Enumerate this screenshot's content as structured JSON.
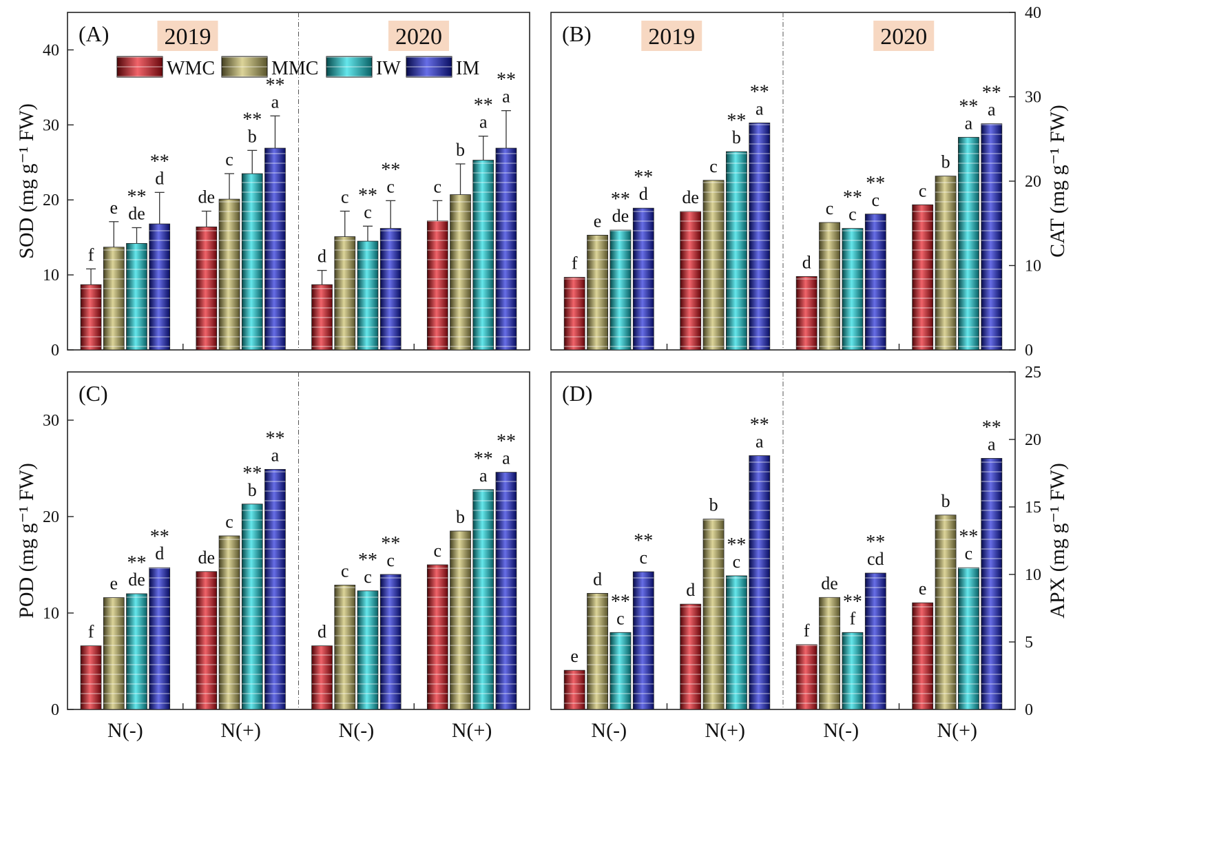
{
  "legend": [
    {
      "key": "WMC",
      "label": "WMC",
      "color": "#e8101a"
    },
    {
      "key": "MMC",
      "label": "MMC",
      "color": "#c9bd62"
    },
    {
      "key": "IW",
      "label": "IW",
      "color": "#12d8e0"
    },
    {
      "key": "IM",
      "label": "IM",
      "color": "#1520d8"
    }
  ],
  "years": [
    "2019",
    "2020"
  ],
  "x_groups": [
    "N(-)",
    "N(+)",
    "N(-)",
    "N(+)"
  ],
  "chart_data": [
    {
      "type": "bar",
      "panel": "(A)",
      "ylabel": "SOD (mg g⁻¹ FW)",
      "axis_side": "left",
      "ylim": [
        0,
        45
      ],
      "yticks": [
        0,
        10,
        20,
        30,
        40
      ],
      "categories": [
        "2019 N(-)",
        "2019 N(+)",
        "2020 N(-)",
        "2020 N(+)"
      ],
      "series": [
        {
          "name": "WMC",
          "values": [
            8.7,
            16.4,
            8.7,
            17.2
          ],
          "errors": [
            2.1,
            2.1,
            1.9,
            2.7
          ],
          "labels": [
            "f",
            "de",
            "d",
            "c"
          ],
          "stars": [
            false,
            false,
            false,
            false
          ]
        },
        {
          "name": "MMC",
          "values": [
            13.7,
            20.1,
            15.1,
            20.7
          ],
          "errors": [
            3.4,
            3.4,
            3.4,
            4.1
          ],
          "labels": [
            "e",
            "c",
            "c",
            "b"
          ],
          "stars": [
            false,
            false,
            false,
            false
          ]
        },
        {
          "name": "IW",
          "values": [
            14.2,
            23.5,
            14.5,
            25.3
          ],
          "errors": [
            2.1,
            3.1,
            2.0,
            3.2
          ],
          "labels": [
            "de",
            "b",
            "c",
            "a"
          ],
          "stars": [
            true,
            true,
            true,
            true
          ]
        },
        {
          "name": "IM",
          "values": [
            16.8,
            26.9,
            16.2,
            26.9
          ],
          "errors": [
            4.2,
            4.3,
            3.7,
            5.0
          ],
          "labels": [
            "d",
            "a",
            "c",
            "a"
          ],
          "stars": [
            true,
            true,
            true,
            true
          ]
        }
      ]
    },
    {
      "type": "bar",
      "panel": "(B)",
      "ylabel": "CAT (mg g⁻¹ FW)",
      "axis_side": "right",
      "ylim": [
        0,
        40
      ],
      "yticks": [
        0,
        10,
        20,
        30,
        40
      ],
      "categories": [
        "2019 N(-)",
        "2019 N(+)",
        "2020 N(-)",
        "2020 N(+)"
      ],
      "series": [
        {
          "name": "WMC",
          "values": [
            8.6,
            16.4,
            8.7,
            17.2
          ],
          "labels": [
            "f",
            "de",
            "d",
            "c"
          ],
          "stars": [
            false,
            false,
            false,
            false
          ]
        },
        {
          "name": "MMC",
          "values": [
            13.6,
            20.1,
            15.1,
            20.6
          ],
          "labels": [
            "e",
            "c",
            "c",
            "b"
          ],
          "stars": [
            false,
            false,
            false,
            false
          ]
        },
        {
          "name": "IW",
          "values": [
            14.2,
            23.5,
            14.4,
            25.2
          ],
          "labels": [
            "de",
            "b",
            "c",
            "a"
          ],
          "stars": [
            true,
            true,
            true,
            true
          ]
        },
        {
          "name": "IM",
          "values": [
            16.8,
            26.9,
            16.1,
            26.8
          ],
          "labels": [
            "d",
            "a",
            "c",
            "a"
          ],
          "stars": [
            true,
            true,
            true,
            true
          ]
        }
      ]
    },
    {
      "type": "bar",
      "panel": "(C)",
      "ylabel": "POD (mg g⁻¹ FW)",
      "axis_side": "left",
      "ylim": [
        0,
        35
      ],
      "yticks": [
        0,
        10,
        20,
        30
      ],
      "categories": [
        "2019 N(-)",
        "2019 N(+)",
        "2020 N(-)",
        "2020 N(+)"
      ],
      "series": [
        {
          "name": "WMC",
          "values": [
            6.6,
            14.3,
            6.6,
            15.0
          ],
          "labels": [
            "f",
            "de",
            "d",
            "c"
          ],
          "stars": [
            false,
            false,
            false,
            false
          ]
        },
        {
          "name": "MMC",
          "values": [
            11.6,
            18.0,
            12.9,
            18.5
          ],
          "labels": [
            "e",
            "c",
            "c",
            "b"
          ],
          "stars": [
            false,
            false,
            false,
            false
          ]
        },
        {
          "name": "IW",
          "values": [
            12.0,
            21.3,
            12.3,
            22.8
          ],
          "labels": [
            "de",
            "b",
            "c",
            "a"
          ],
          "stars": [
            true,
            true,
            true,
            true
          ]
        },
        {
          "name": "IM",
          "values": [
            14.7,
            24.9,
            14.0,
            24.6
          ],
          "labels": [
            "d",
            "a",
            "c",
            "a"
          ],
          "stars": [
            true,
            true,
            true,
            true
          ]
        }
      ]
    },
    {
      "type": "bar",
      "panel": "(D)",
      "ylabel": "APX (mg g⁻¹ FW)",
      "axis_side": "right",
      "ylim": [
        0,
        25
      ],
      "yticks": [
        0,
        5,
        10,
        15,
        20,
        25
      ],
      "categories": [
        "2019 N(-)",
        "2019 N(+)",
        "2020 N(-)",
        "2020 N(+)"
      ],
      "series": [
        {
          "name": "WMC",
          "values": [
            2.9,
            7.8,
            4.8,
            7.9
          ],
          "labels": [
            "e",
            "d",
            "f",
            "e"
          ],
          "stars": [
            false,
            false,
            false,
            false
          ]
        },
        {
          "name": "MMC",
          "values": [
            8.6,
            14.1,
            8.3,
            14.4
          ],
          "labels": [
            "d",
            "b",
            "de",
            "b"
          ],
          "stars": [
            false,
            false,
            false,
            false
          ]
        },
        {
          "name": "IW",
          "values": [
            5.7,
            9.9,
            5.7,
            10.5
          ],
          "labels": [
            "c",
            "c",
            "f",
            "c"
          ],
          "stars": [
            true,
            true,
            true,
            true
          ]
        },
        {
          "name": "IM",
          "values": [
            10.2,
            18.8,
            10.1,
            18.6
          ],
          "labels": [
            "c",
            "a",
            "cd",
            "a"
          ],
          "stars": [
            true,
            true,
            true,
            true
          ]
        }
      ]
    }
  ]
}
